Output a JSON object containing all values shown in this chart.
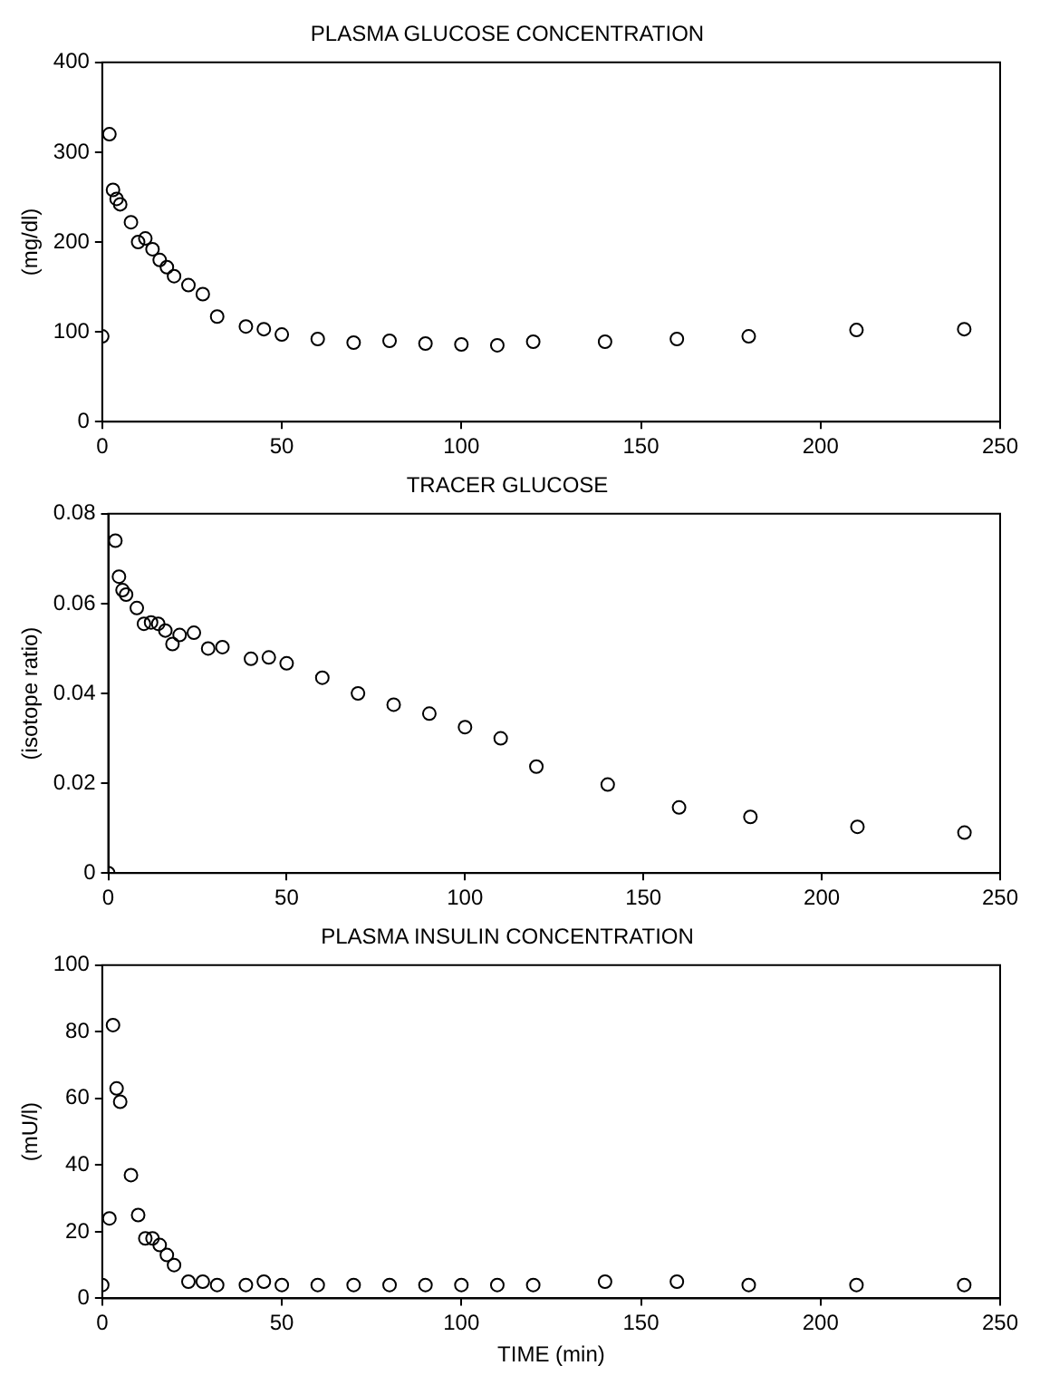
{
  "chart_data": [
    {
      "type": "scatter",
      "title": "PLASMA GLUCOSE CONCENTRATION",
      "ylabel": "(mg/dl)",
      "marker": "circle",
      "grid": false,
      "x": [
        0,
        2,
        3,
        4,
        5,
        8,
        10,
        12,
        14,
        16,
        18,
        20,
        24,
        28,
        32,
        40,
        45,
        50,
        60,
        70,
        80,
        90,
        100,
        110,
        120,
        140,
        160,
        180,
        210,
        240
      ],
      "series": [
        {
          "color": "#000000",
          "values": [
            95,
            320,
            258,
            248,
            242,
            222,
            200,
            204,
            192,
            180,
            172,
            162,
            152,
            142,
            117,
            106,
            103,
            97,
            92,
            88,
            90,
            87,
            86,
            85,
            89,
            89,
            92,
            95,
            102,
            103
          ]
        }
      ],
      "xlim": [
        0,
        250
      ],
      "xticks": [
        0,
        50,
        100,
        150,
        200,
        250
      ],
      "ylim": [
        0,
        400
      ],
      "yticks": [
        0,
        100,
        200,
        300,
        400
      ]
    },
    {
      "type": "scatter",
      "title": "TRACER GLUCOSE",
      "ylabel": "(isotope ratio)",
      "marker": "circle",
      "grid": false,
      "x": [
        0,
        2,
        3,
        4,
        5,
        8,
        10,
        12,
        14,
        16,
        18,
        20,
        24,
        28,
        32,
        40,
        45,
        50,
        60,
        70,
        80,
        90,
        100,
        110,
        120,
        140,
        160,
        180,
        210,
        240
      ],
      "series": [
        {
          "color": "#000000",
          "values": [
            0,
            0.074,
            0.066,
            0.063,
            0.062,
            0.059,
            0.0555,
            0.0558,
            0.0555,
            0.054,
            0.051,
            0.053,
            0.0535,
            0.05,
            0.0503,
            0.0477,
            0.048,
            0.0467,
            0.0435,
            0.04,
            0.0375,
            0.0355,
            0.0325,
            0.03,
            0.0237,
            0.0197,
            0.0146,
            0.0125,
            0.0103,
            0.009
          ]
        }
      ],
      "xlim": [
        0,
        250
      ],
      "xticks": [
        0,
        50,
        100,
        150,
        200,
        250
      ],
      "ylim": [
        0,
        0.08
      ],
      "yticks": [
        0,
        0.02,
        0.04,
        0.06,
        0.08
      ]
    },
    {
      "type": "scatter",
      "title": "PLASMA INSULIN CONCENTRATION",
      "xlabel": "TIME (min)",
      "ylabel": "(mU/l)",
      "marker": "circle",
      "grid": false,
      "x": [
        0,
        2,
        3,
        4,
        5,
        8,
        10,
        12,
        14,
        16,
        18,
        20,
        24,
        28,
        32,
        40,
        45,
        50,
        60,
        70,
        80,
        90,
        100,
        110,
        120,
        140,
        160,
        180,
        210,
        240
      ],
      "series": [
        {
          "color": "#000000",
          "values": [
            4,
            24,
            82,
            63,
            59,
            37,
            25,
            18,
            18,
            16,
            13,
            10,
            5,
            5,
            4,
            4,
            5,
            4,
            4,
            4,
            4,
            4,
            4,
            4,
            4,
            5,
            5,
            4,
            4,
            4
          ]
        }
      ],
      "xlim": [
        0,
        250
      ],
      "xticks": [
        0,
        50,
        100,
        150,
        200,
        250
      ],
      "ylim": [
        0,
        100
      ],
      "yticks": [
        0,
        20,
        40,
        60,
        80,
        100
      ]
    }
  ]
}
